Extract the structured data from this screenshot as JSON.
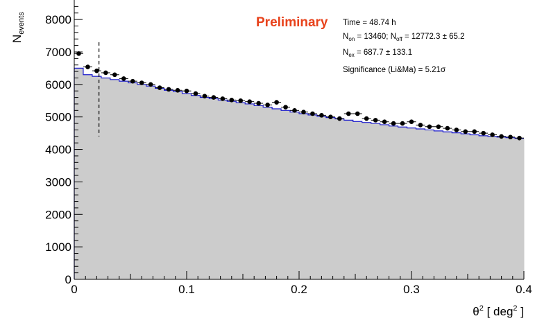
{
  "chart_data": {
    "type": "histogram",
    "xlabel_base": "θ",
    "xlabel_sup": "2",
    "xlabel_mid": " [ deg",
    "xlabel_sup2": "2",
    "xlabel_end": " ]",
    "ylabel_base": "N",
    "ylabel_sub": "events",
    "xlim": [
      0,
      0.4
    ],
    "ylim": [
      0,
      8600
    ],
    "x_ticks": [
      {
        "v": 0,
        "label": "0"
      },
      {
        "v": 0.1,
        "label": "0.1"
      },
      {
        "v": 0.2,
        "label": "0.2"
      },
      {
        "v": 0.3,
        "label": "0.3"
      },
      {
        "v": 0.4,
        "label": "0.4"
      }
    ],
    "y_ticks": [
      {
        "v": 0,
        "label": "0"
      },
      {
        "v": 1000,
        "label": "1000"
      },
      {
        "v": 2000,
        "label": "2000"
      },
      {
        "v": 3000,
        "label": "3000"
      },
      {
        "v": 4000,
        "label": "4000"
      },
      {
        "v": 5000,
        "label": "5000"
      },
      {
        "v": 6000,
        "label": "6000"
      },
      {
        "v": 7000,
        "label": "7000"
      },
      {
        "v": 8000,
        "label": "8000"
      }
    ],
    "bin_width": 0.008,
    "bin_edges_start": 0,
    "on_values": [
      6950,
      6540,
      6420,
      6360,
      6300,
      6180,
      6100,
      6050,
      6000,
      5900,
      5850,
      5820,
      5800,
      5720,
      5640,
      5600,
      5560,
      5520,
      5500,
      5470,
      5420,
      5370,
      5450,
      5300,
      5200,
      5150,
      5100,
      5050,
      5000,
      4950,
      5100,
      5100,
      4950,
      4900,
      4850,
      4800,
      4800,
      4850,
      4750,
      4700,
      4700,
      4650,
      4600,
      4550,
      4550,
      4500,
      4450,
      4400,
      4380,
      4350
    ],
    "off_values": [
      6500,
      6300,
      6250,
      6200,
      6150,
      6100,
      6050,
      6000,
      5950,
      5880,
      5820,
      5780,
      5720,
      5660,
      5600,
      5560,
      5520,
      5480,
      5440,
      5400,
      5350,
      5300,
      5250,
      5200,
      5150,
      5100,
      5060,
      5020,
      4980,
      4940,
      4900,
      4860,
      4830,
      4800,
      4760,
      4720,
      4690,
      4660,
      4630,
      4600,
      4570,
      4540,
      4510,
      4480,
      4450,
      4420,
      4400,
      4380,
      4360,
      4340
    ],
    "cut_x": 0.022,
    "cut_y_range": [
      4400,
      7300
    ],
    "annotations": {
      "prelim": "Preliminary",
      "time": "Time = 48.74 h",
      "non_pre": "N",
      "non_sub": "on",
      "non_val": " = 13460; N",
      "noff_sub": "off",
      "noff_val": " = 12772.3 ± 65.2",
      "nex_pre": "N",
      "nex_sub": "ex",
      "nex_val": " = 687.7 ± 133.1",
      "sig": "Significance (Li&Ma) = 5.21σ"
    },
    "colors": {
      "fill": "#cccccc",
      "off_line": "#1a1acc",
      "points": "#000000",
      "prelim": "#e8421b"
    }
  }
}
